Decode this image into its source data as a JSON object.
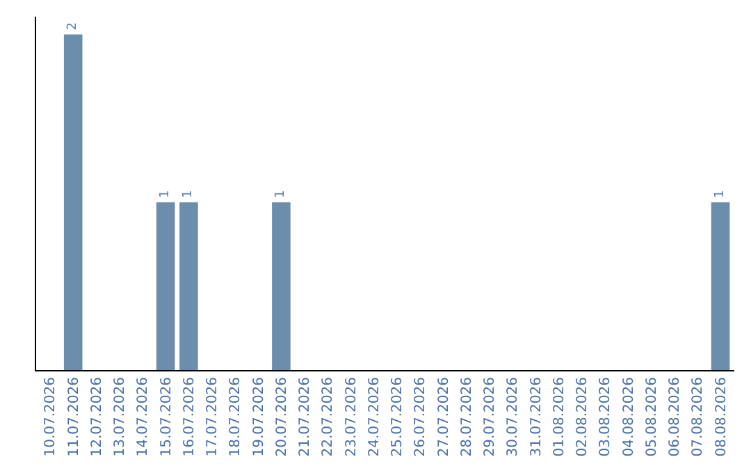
{
  "chart_data": {
    "type": "bar",
    "categories": [
      "10.07.2026",
      "11.07.2026",
      "12.07.2026",
      "13.07.2026",
      "14.07.2026",
      "15.07.2026",
      "16.07.2026",
      "17.07.2026",
      "18.07.2026",
      "19.07.2026",
      "20.07.2026",
      "21.07.2026",
      "22.07.2026",
      "23.07.2026",
      "24.07.2026",
      "25.07.2026",
      "26.07.2026",
      "27.07.2026",
      "28.07.2026",
      "29.07.2026",
      "30.07.2026",
      "31.07.2026",
      "01.08.2026",
      "02.08.2026",
      "03.08.2026",
      "04.08.2026",
      "05.08.2026",
      "06.08.2026",
      "07.08.2026",
      "08.08.2026"
    ],
    "values": [
      0,
      2,
      0,
      0,
      0,
      1,
      1,
      0,
      0,
      0,
      1,
      0,
      0,
      0,
      0,
      0,
      0,
      0,
      0,
      0,
      0,
      0,
      0,
      0,
      0,
      0,
      0,
      0,
      0,
      1
    ],
    "value_labels": [
      null,
      "2",
      null,
      null,
      null,
      "1",
      "1",
      null,
      null,
      null,
      "1",
      null,
      null,
      null,
      null,
      null,
      null,
      null,
      null,
      null,
      null,
      null,
      null,
      null,
      null,
      null,
      null,
      null,
      null,
      "1"
    ],
    "color": "#6d8dac",
    "tick_labels": "x"
  }
}
